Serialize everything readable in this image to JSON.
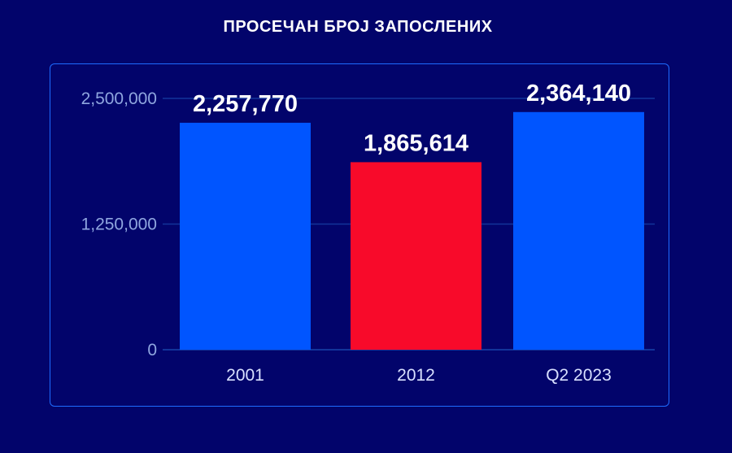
{
  "chart_data": {
    "type": "bar",
    "title": "ПРОСЕЧАН БРОЈ ЗАПОСЛЕНИХ",
    "categories": [
      "2001",
      "2012",
      "Q2 2023"
    ],
    "values": [
      2257770,
      1865614,
      2364140
    ],
    "value_labels": [
      "2,257,770",
      "1,865,614",
      "2,364,140"
    ],
    "bar_colors": [
      "#0055ff",
      "#f80a2a",
      "#0055ff"
    ],
    "yticks": [
      0,
      1250000,
      2500000
    ],
    "ytick_labels": [
      "0",
      "1,250,000",
      "2,500,000"
    ],
    "ylim": [
      0,
      2500000
    ],
    "grid": true,
    "colors": {
      "background": "#02046b",
      "panel_border": "#1e6cff",
      "gridline": "#12349a"
    }
  }
}
